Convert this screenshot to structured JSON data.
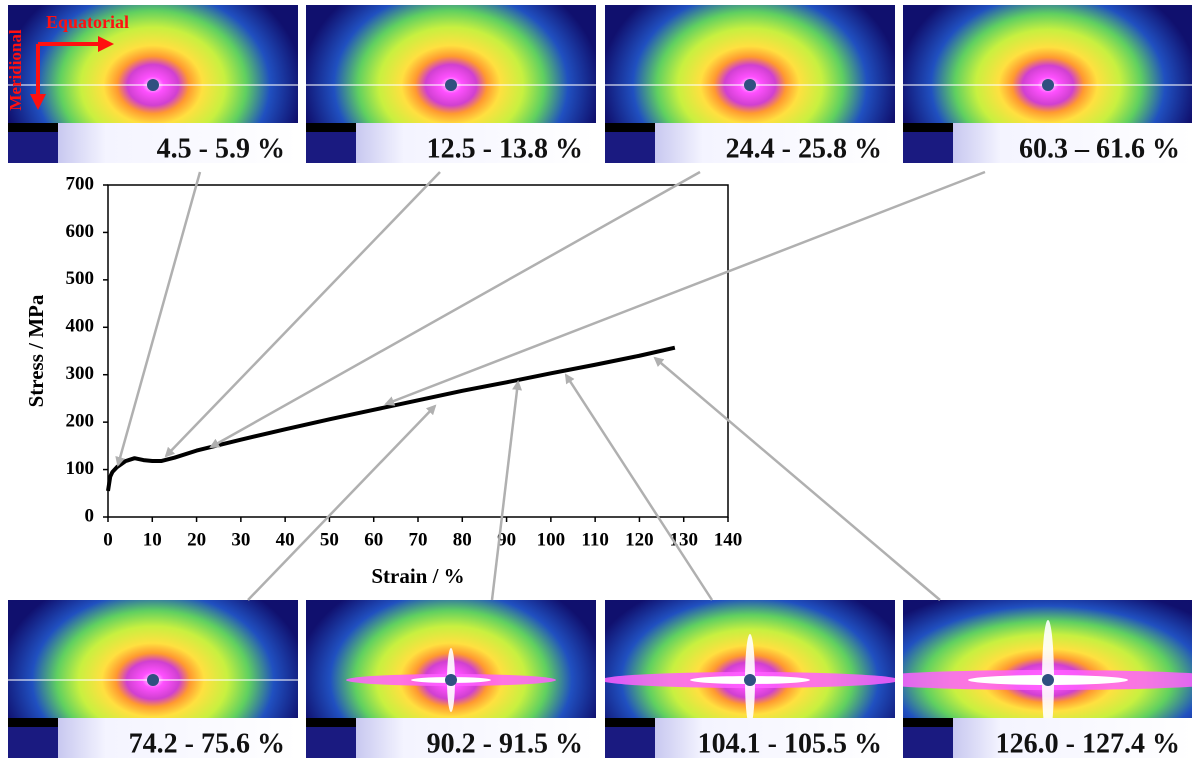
{
  "chart_data": {
    "type": "line",
    "x_label": "Strain / %",
    "y_label": "Stress / MPa",
    "xlim": [
      0,
      140
    ],
    "xticks": [
      0,
      10,
      20,
      30,
      40,
      50,
      60,
      70,
      80,
      90,
      100,
      110,
      120,
      130,
      140
    ],
    "ylim": [
      0,
      700
    ],
    "yticks": [
      0,
      100,
      200,
      300,
      400,
      500,
      600,
      700
    ],
    "x": [
      0,
      0.5,
      1,
      2,
      4,
      6,
      8,
      10,
      12,
      15,
      20,
      30,
      40,
      50,
      60,
      70,
      80,
      90,
      100,
      110,
      120,
      128
    ],
    "series": [
      {
        "color": "#000000",
        "values": [
          55,
          85,
          95,
          105,
          118,
          124,
          120,
          118,
          118,
          125,
          140,
          163,
          185,
          206,
          226,
          246,
          266,
          284,
          303,
          321,
          340,
          357
        ]
      }
    ],
    "equatorial_label": "Equatorial",
    "meridional_label": "Meridional",
    "annotations": [
      "4.5 - 5.9 %",
      "12.5 - 13.8 %",
      "24.4 - 25.8 %",
      "60.3 – 61.6 %",
      "74.2 - 75.6 %",
      "90.2 - 91.5 %",
      "104.1 - 105.5 %",
      "126.0 - 127.4 %"
    ]
  }
}
